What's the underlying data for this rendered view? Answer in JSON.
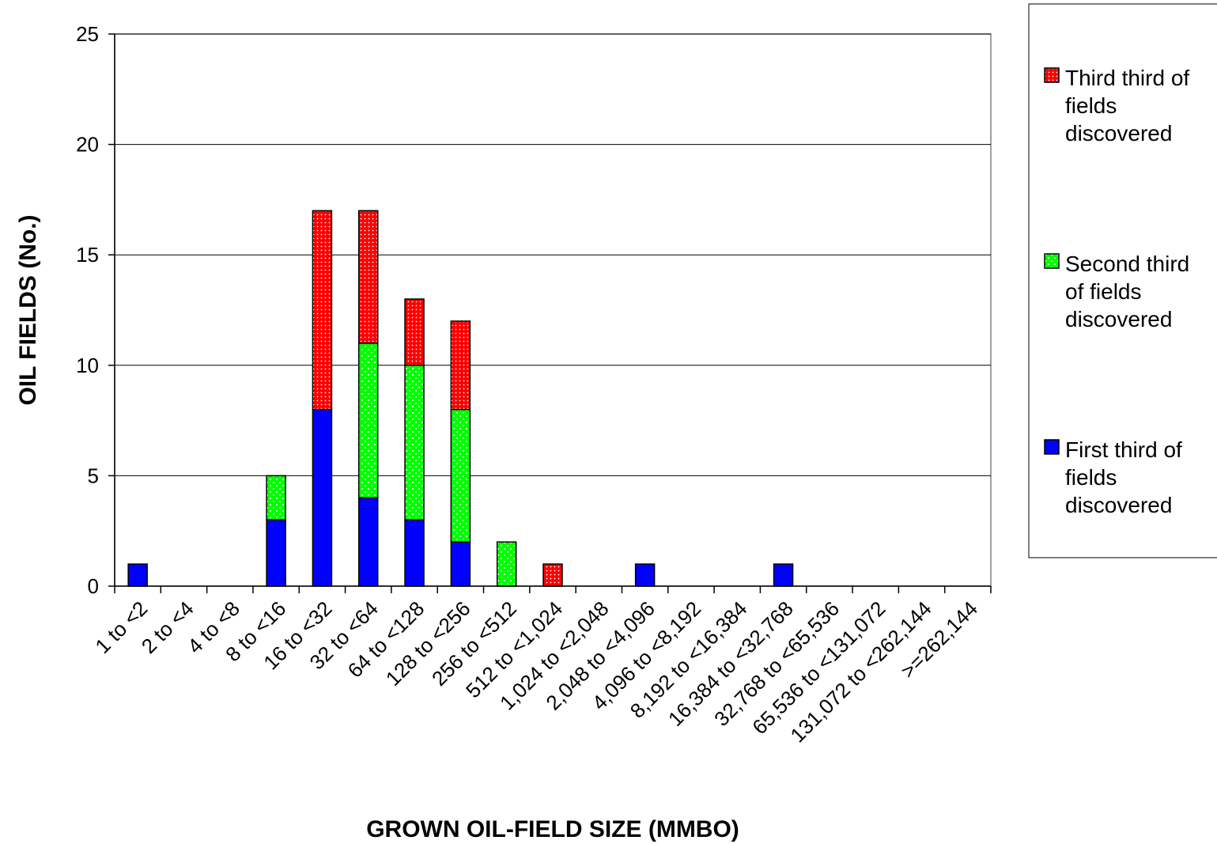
{
  "chart_data": {
    "type": "bar",
    "stacked": true,
    "xlabel": "GROWN OIL-FIELD SIZE (MMBO)",
    "ylabel": "OIL FIELDS (No.)",
    "ylim": [
      0,
      25
    ],
    "yticks": [
      "0",
      "5",
      "10",
      "15",
      "20",
      "25"
    ],
    "grid": true,
    "legend_position": "right",
    "categories": [
      "1 to <2",
      "2 to <4",
      "4 to <8",
      "8 to <16",
      "16 to <32",
      "32 to <64",
      "64 to <128",
      "128 to <256",
      "256 to <512",
      "512 to <1,024",
      "1,024 to <2,048",
      "2,048 to <4,096",
      "4,096 to <8,192",
      "8,192 to <16,384",
      "16,384 to <32,768",
      "32,768 to <65,536",
      "65,536 to <131,072",
      "131,072 to <262,144",
      ">=262,144"
    ],
    "series": [
      {
        "name": "First third of fields discovered",
        "color": "#0000ff",
        "pattern": "solid",
        "values": [
          1,
          0,
          0,
          3,
          8,
          4,
          3,
          2,
          0,
          0,
          0,
          1,
          0,
          0,
          1,
          0,
          0,
          0,
          0
        ]
      },
      {
        "name": "Second third of fields discovered",
        "color": "#00ff00",
        "pattern": "dotted",
        "values": [
          0,
          0,
          0,
          2,
          0,
          7,
          7,
          6,
          2,
          0,
          0,
          0,
          0,
          0,
          0,
          0,
          0,
          0,
          0
        ]
      },
      {
        "name": "Third third of fields discovered",
        "color": "#ff0000",
        "pattern": "dotted",
        "values": [
          0,
          0,
          0,
          0,
          9,
          6,
          3,
          4,
          0,
          1,
          0,
          0,
          0,
          0,
          0,
          0,
          0,
          0,
          0
        ]
      }
    ],
    "legend": [
      {
        "lines": [
          "Third third of",
          "fields",
          "discovered"
        ],
        "color": "#ff0000",
        "pattern": "dotted"
      },
      {
        "lines": [
          "Second third",
          "of fields",
          "discovered"
        ],
        "color": "#00ff00",
        "pattern": "dotted"
      },
      {
        "lines": [
          "First third of",
          "fields",
          "discovered"
        ],
        "color": "#0000ff",
        "pattern": "solid"
      }
    ]
  }
}
